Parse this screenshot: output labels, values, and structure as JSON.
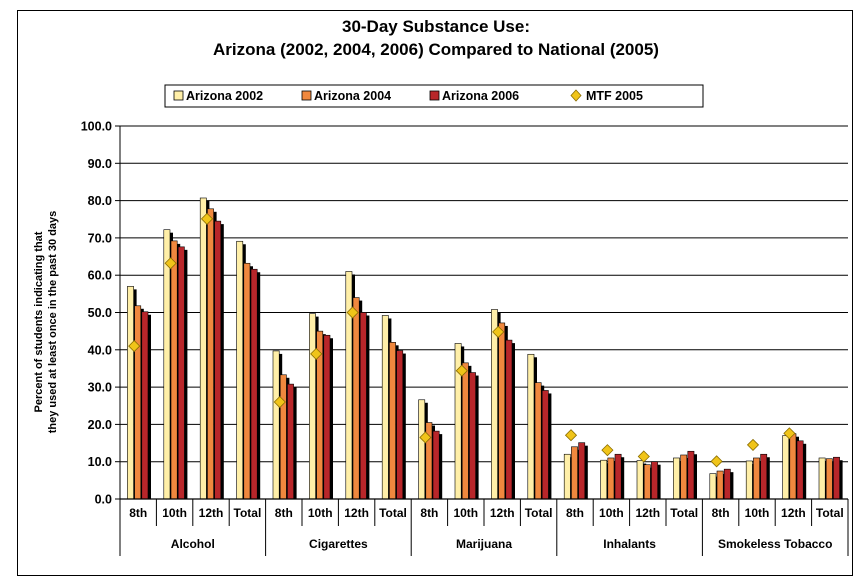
{
  "chart_data": {
    "type": "bar",
    "title_lines": [
      "30-Day Substance Use:",
      "Arizona (2002, 2004, 2006) Compared to National (2005)"
    ],
    "ylabel_lines": [
      "Percent of students indicating that",
      "they used at least once in the past 30 days"
    ],
    "ylim": [
      0,
      100
    ],
    "yticks": [
      "0.0",
      "10.0",
      "20.0",
      "30.0",
      "40.0",
      "50.0",
      "60.0",
      "70.0",
      "80.0",
      "90.0",
      "100.0"
    ],
    "grid": true,
    "legend_position": "top",
    "groups": [
      "Alcohol",
      "Cigarettes",
      "Marijuana",
      "Inhalants",
      "Smokeless Tobacco"
    ],
    "categories": [
      "8th",
      "10th",
      "12th",
      "Total",
      "8th",
      "10th",
      "12th",
      "Total",
      "8th",
      "10th",
      "12th",
      "Total",
      "8th",
      "10th",
      "12th",
      "Total",
      "8th",
      "10th",
      "12th",
      "Total"
    ],
    "series": [
      {
        "name": "Arizona 2002",
        "kind": "bar",
        "color": "#FFEFA8",
        "values": [
          57.0,
          72.2,
          80.7,
          69.1,
          39.7,
          49.7,
          61.0,
          49.2,
          26.6,
          41.7,
          50.8,
          38.8,
          12.0,
          10.4,
          10.3,
          11.0,
          6.8,
          10.2,
          17.0,
          11.0
        ]
      },
      {
        "name": "Arizona 2004",
        "kind": "bar",
        "color": "#F0883E",
        "values": [
          51.8,
          69.2,
          77.8,
          63.2,
          33.3,
          45.0,
          54.0,
          42.0,
          20.5,
          36.5,
          47.2,
          31.2,
          14.0,
          11.0,
          9.2,
          11.8,
          7.5,
          11.0,
          17.5,
          10.8
        ]
      },
      {
        "name": "Arizona 2006",
        "kind": "bar",
        "color": "#B8262A",
        "values": [
          50.2,
          67.6,
          74.5,
          61.6,
          30.8,
          43.9,
          50.0,
          39.8,
          18.2,
          33.9,
          42.6,
          29.1,
          15.1,
          12.0,
          10.0,
          12.8,
          8.0,
          12.0,
          15.6,
          11.2
        ]
      },
      {
        "name": "MTF 2005",
        "kind": "marker",
        "color": "#F0C419",
        "values": [
          41.0,
          63.2,
          75.1,
          null,
          26.0,
          38.9,
          50.0,
          null,
          16.5,
          34.4,
          44.8,
          null,
          17.1,
          13.1,
          11.4,
          null,
          10.1,
          14.5,
          17.6,
          null
        ]
      }
    ]
  }
}
